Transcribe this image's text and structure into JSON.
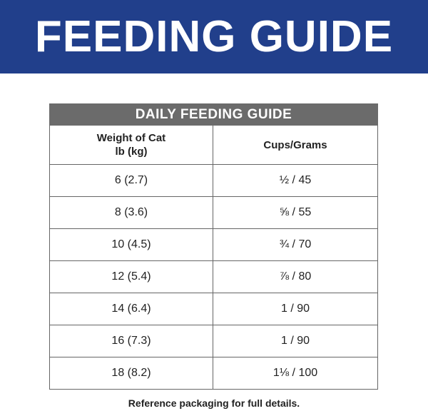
{
  "header": {
    "title": "FEEDING GUIDE"
  },
  "table": {
    "title": "DAILY FEEDING GUIDE",
    "columns": [
      [
        "Weight of Cat",
        "lb (kg)"
      ],
      [
        "Cups/Grams"
      ]
    ],
    "rows": [
      [
        "6 (2.7)",
        "½ / 45"
      ],
      [
        "8 (3.6)",
        "⅝ / 55"
      ],
      [
        "10 (4.5)",
        "¾ / 70"
      ],
      [
        "12 (5.4)",
        "⅞ / 80"
      ],
      [
        "14 (6.4)",
        "1 / 90"
      ],
      [
        "16 (7.3)",
        "1 / 90"
      ],
      [
        "18 (8.2)",
        "1⅛ / 100"
      ]
    ]
  },
  "footer": {
    "note": "Reference packaging for full details."
  }
}
